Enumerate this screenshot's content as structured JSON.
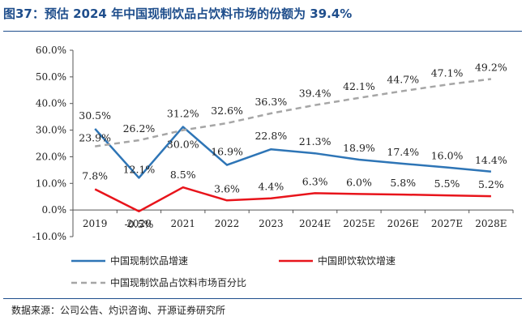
{
  "title": "图37：预估 2024 年中国现制饮品占饮料市场的份额为 39.4%",
  "source": "数据来源：公司公告、灼识咨询、开源证券研究所",
  "chart_data": {
    "type": "line",
    "categories": [
      "2019",
      "2020",
      "2021",
      "2022",
      "2023",
      "2024E",
      "2025E",
      "2026E",
      "2027E",
      "2028E"
    ],
    "ylim": [
      -10,
      60
    ],
    "yticks": [
      "-10.0%",
      "0.0%",
      "10.0%",
      "20.0%",
      "30.0%",
      "40.0%",
      "50.0%",
      "60.0%"
    ],
    "grid": false,
    "legend_position": "bottom",
    "series": [
      {
        "name": "中国现制饮品增速",
        "color": "#2e75b6",
        "dash": "solid",
        "values": [
          30.5,
          12.1,
          31.2,
          16.9,
          22.8,
          21.3,
          18.9,
          17.4,
          16.0,
          14.4
        ],
        "labels": [
          "30.5%",
          "12.1%",
          "31.2%",
          "16.9%",
          "22.8%",
          "21.3%",
          "18.9%",
          "17.4%",
          "16.0%",
          "14.4%"
        ]
      },
      {
        "name": "中国即饮软饮增速",
        "color": "#e8141b",
        "dash": "solid",
        "values": [
          7.8,
          -0.5,
          8.5,
          3.6,
          4.4,
          6.3,
          6.0,
          5.8,
          5.5,
          5.2
        ],
        "labels": [
          "7.8%",
          "-0.5%",
          "8.5%",
          "3.6%",
          "4.4%",
          "6.3%",
          "6.0%",
          "5.8%",
          "5.5%",
          "5.2%"
        ]
      },
      {
        "name": "中国现制饮品占饮料市场百分比",
        "color": "#a6a6a6",
        "dash": "dashed",
        "values": [
          23.9,
          26.2,
          30.0,
          32.6,
          36.3,
          39.4,
          42.1,
          44.7,
          47.1,
          49.2
        ],
        "labels": [
          "23.9%",
          "26.2%",
          "30.0%",
          "32.6%",
          "36.3%",
          "39.4%",
          "42.1%",
          "44.7%",
          "47.1%",
          "49.2%"
        ]
      }
    ]
  }
}
